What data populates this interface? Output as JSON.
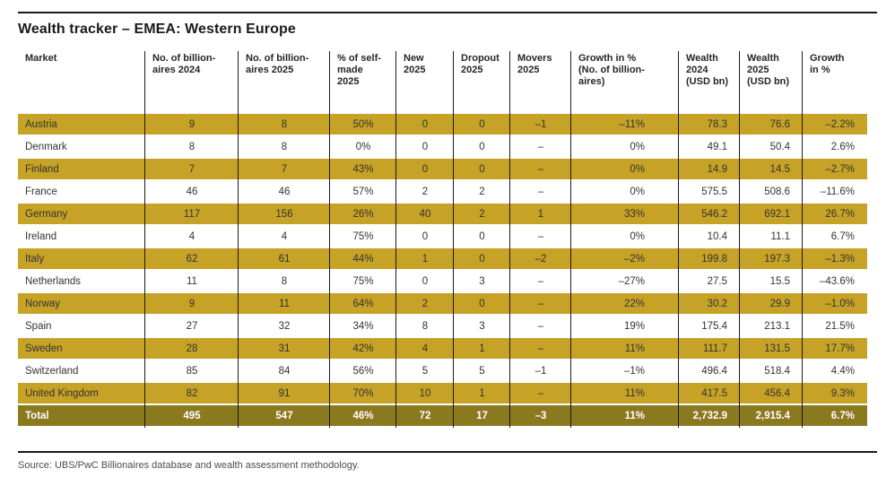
{
  "title": "Wealth tracker – EMEA: Western Europe",
  "source": "Source: UBS/PwC Billionaires database and wealth assessment methodology.",
  "colors": {
    "row_highlight": "#c6a227",
    "total_row_bg": "#8b7920",
    "total_row_text": "#ffffff",
    "rule": "#1a1a1a",
    "body_text": "#333333",
    "source_text": "#4d4d4d"
  },
  "table": {
    "columns": [
      {
        "id": "market",
        "label": "Market"
      },
      {
        "id": "billionaires-2024",
        "label": "No. of billion-\naires 2024"
      },
      {
        "id": "billionaires-2025",
        "label": "No. of billion-\naires 2025"
      },
      {
        "id": "self-made-2025",
        "label": "% of self-\nmade\n2025"
      },
      {
        "id": "new-2025",
        "label": "New\n2025"
      },
      {
        "id": "dropout-2025",
        "label": "Dropout\n2025"
      },
      {
        "id": "movers-2025",
        "label": "Movers\n2025"
      },
      {
        "id": "growth-billionaires",
        "label": "Growth in %\n(No. of billion-\naires)"
      },
      {
        "id": "wealth-2024",
        "label": "Wealth\n2024\n(USD bn)"
      },
      {
        "id": "wealth-2025",
        "label": "Wealth\n2025\n(USD bn)"
      },
      {
        "id": "growth-wealth",
        "label": "Growth\nin %"
      }
    ],
    "rows": [
      {
        "market": "Austria",
        "values": [
          "9",
          "8",
          "50%",
          "0",
          "0",
          "–1",
          "–11%",
          "78.3",
          "76.6",
          "–2.2%"
        ]
      },
      {
        "market": "Denmark",
        "values": [
          "8",
          "8",
          "0%",
          "0",
          "0",
          "–",
          "0%",
          "49.1",
          "50.4",
          "2.6%"
        ]
      },
      {
        "market": "Finland",
        "values": [
          "7",
          "7",
          "43%",
          "0",
          "0",
          "–",
          "0%",
          "14.9",
          "14.5",
          "–2.7%"
        ]
      },
      {
        "market": "France",
        "values": [
          "46",
          "46",
          "57%",
          "2",
          "2",
          "–",
          "0%",
          "575.5",
          "508.6",
          "–11.6%"
        ]
      },
      {
        "market": "Germany",
        "values": [
          "117",
          "156",
          "26%",
          "40",
          "2",
          "1",
          "33%",
          "546.2",
          "692.1",
          "26.7%"
        ]
      },
      {
        "market": "Ireland",
        "values": [
          "4",
          "4",
          "75%",
          "0",
          "0",
          "–",
          "0%",
          "10.4",
          "11.1",
          "6.7%"
        ]
      },
      {
        "market": "Italy",
        "values": [
          "62",
          "61",
          "44%",
          "1",
          "0",
          "–2",
          "–2%",
          "199.8",
          "197.3",
          "–1.3%"
        ]
      },
      {
        "market": "Netherlands",
        "values": [
          "11",
          "8",
          "75%",
          "0",
          "3",
          "–",
          "–27%",
          "27.5",
          "15.5",
          "–43.6%"
        ]
      },
      {
        "market": "Norway",
        "values": [
          "9",
          "11",
          "64%",
          "2",
          "0",
          "–",
          "22%",
          "30.2",
          "29.9",
          "–1.0%"
        ]
      },
      {
        "market": "Spain",
        "values": [
          "27",
          "32",
          "34%",
          "8",
          "3",
          "–",
          "19%",
          "175.4",
          "213.1",
          "21.5%"
        ]
      },
      {
        "market": "Sweden",
        "values": [
          "28",
          "31",
          "42%",
          "4",
          "1",
          "–",
          "11%",
          "111.7",
          "131.5",
          "17.7%"
        ]
      },
      {
        "market": "Switzerland",
        "values": [
          "85",
          "84",
          "56%",
          "5",
          "5",
          "–1",
          "–1%",
          "496.4",
          "518.4",
          "4.4%"
        ]
      },
      {
        "market": "United Kingdom",
        "values": [
          "82",
          "91",
          "70%",
          "10",
          "1",
          "–",
          "11%",
          "417.5",
          "456.4",
          "9.3%"
        ]
      }
    ],
    "total": {
      "market": "Total",
      "values": [
        "495",
        "547",
        "46%",
        "72",
        "17",
        "–3",
        "11%",
        "2,732.9",
        "2,915.4",
        "6.7%"
      ]
    }
  }
}
